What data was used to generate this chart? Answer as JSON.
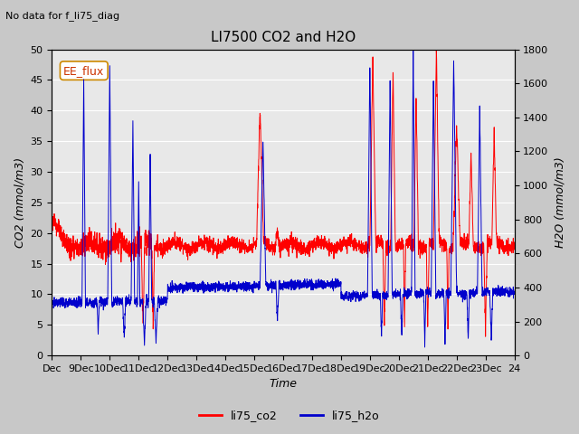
{
  "title": "LI7500 CO2 and H2O",
  "subtitle": "No data for f_li75_diag",
  "xlabel": "Time",
  "ylabel_left": "CO2 (mmol/m3)",
  "ylabel_right": "H2O (mmol/m3)",
  "ylim_left": [
    0,
    50
  ],
  "ylim_right": [
    0,
    1800
  ],
  "xtick_labels": [
    "Dec",
    "9Dec",
    "10Dec",
    "11Dec",
    "12Dec",
    "13Dec",
    "14Dec",
    "15Dec",
    "16Dec",
    "17Dec",
    "18Dec",
    "19Dec",
    "20Dec",
    "21Dec",
    "22Dec",
    "23Dec",
    "24"
  ],
  "legend_entries": [
    "li75_co2",
    "li75_h2o"
  ],
  "legend_colors": [
    "#ff0000",
    "#0000cc"
  ],
  "co2_color": "#ff0000",
  "h2o_color": "#0000cc",
  "fig_bg": "#c8c8c8",
  "axes_bg": "#e8e8e8",
  "annotation_text": "EE_flux",
  "grid_color": "#ffffff",
  "yticks_left": [
    0,
    5,
    10,
    15,
    20,
    25,
    30,
    35,
    40,
    45,
    50
  ],
  "yticks_right": [
    0,
    200,
    400,
    600,
    800,
    1000,
    1200,
    1400,
    1600,
    1800
  ]
}
